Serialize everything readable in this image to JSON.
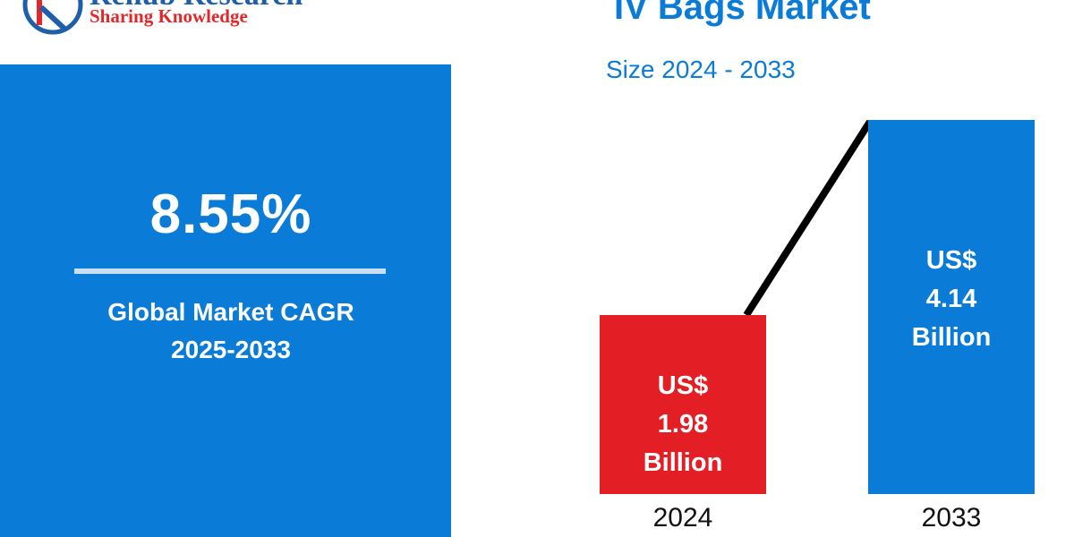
{
  "logo": {
    "name": "Renub Research",
    "tagline": "Sharing Knowledge"
  },
  "cagr": {
    "value": "8.55%",
    "label_line1": "Global Market CAGR",
    "label_line2": "2025-2033"
  },
  "colors": {
    "primary_blue": "#0b7bd8",
    "bar_2024": "#e31e24",
    "bar_2033": "#0b7bd8",
    "trend_line": "#000000"
  },
  "chart_data": {
    "type": "bar",
    "title": "IV Bags Market",
    "subtitle": "Size 2024 - 2033",
    "categories": [
      "2024",
      "2033"
    ],
    "values": [
      1.98,
      4.14
    ],
    "unit": "US$ Billion",
    "data_labels": [
      {
        "prefix": "US$",
        "value": "1.98",
        "suffix": "Billion"
      },
      {
        "prefix": "US$",
        "value": "4.14",
        "suffix": "Billion"
      }
    ],
    "xlabel": "",
    "ylabel": "",
    "ylim": [
      0,
      4.5
    ],
    "grid": false,
    "legend": "none",
    "trend_line": true
  }
}
